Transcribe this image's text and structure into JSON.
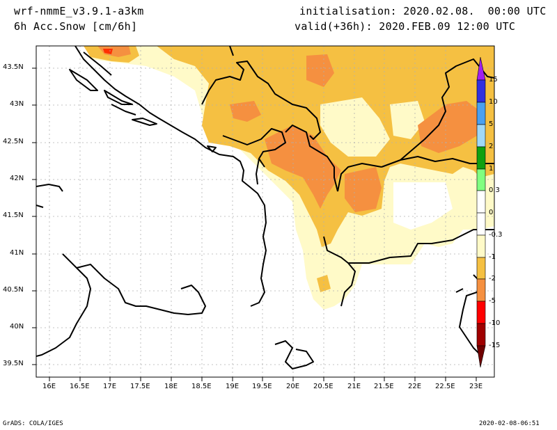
{
  "header": {
    "model": "wrf-nmmE_v3.9.1-a3km",
    "field": "6h Acc.Snow [cm/6h]",
    "init": "initialisation: 2020.02.08.  00:00 UTC",
    "valid": "valid(+36h): 2020.FEB.09 12:00 UTC"
  },
  "footer": {
    "credit": "GrADS: COLA/IGES",
    "timestamp": "2020-02-08-06:51"
  },
  "axes": {
    "lat_labels": [
      "43.5N",
      "43N",
      "42.5N",
      "42N",
      "41.5N",
      "41N",
      "40.5N",
      "40N",
      "39.5N"
    ],
    "lon_labels": [
      "16E",
      "16.5E",
      "17E",
      "17.5E",
      "18E",
      "18.5E",
      "19E",
      "19.5E",
      "20E",
      "20.5E",
      "21E",
      "21.5E",
      "22E",
      "22.5E",
      "23E"
    ]
  },
  "colorbar": {
    "labels": [
      "15",
      "10",
      "5",
      "2",
      "1",
      "0.3",
      "0",
      "-0.3",
      "-1",
      "-2",
      "-5",
      "-10",
      "-15"
    ],
    "colors": [
      "#a020f0",
      "#3030e0",
      "#4aa0f0",
      "#a0d8f8",
      "#10a010",
      "#80ff80",
      "#ffffff",
      "#ffffff",
      "#fffac8",
      "#f5c042",
      "#f59040",
      "#ff0000",
      "#a00000",
      "#700000"
    ]
  },
  "colors": {
    "snow_light": "#fffac8",
    "snow_mid": "#f5c042",
    "snow_heavy": "#f59040",
    "snow_extreme": "#ff0000"
  }
}
